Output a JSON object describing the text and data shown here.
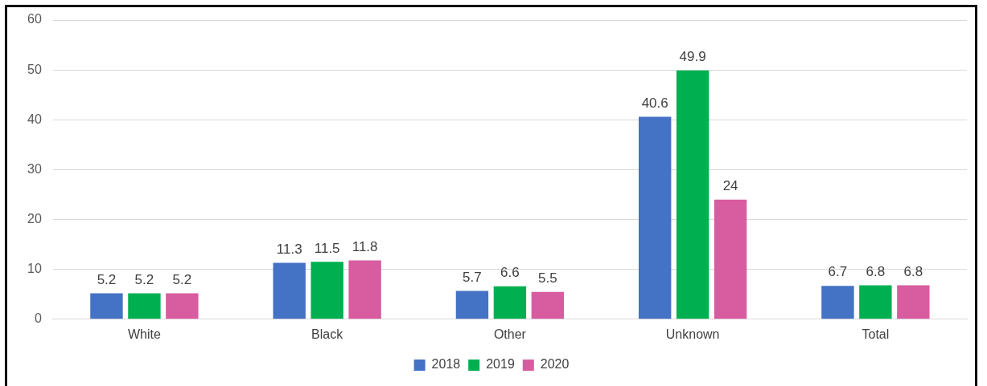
{
  "chart_data": {
    "type": "bar",
    "categories": [
      "White",
      "Black",
      "Other",
      "Unknown",
      "Total"
    ],
    "series": [
      {
        "name": "2018",
        "color": "#4472c4",
        "values": [
          5.2,
          11.3,
          5.7,
          40.6,
          6.7
        ]
      },
      {
        "name": "2019",
        "color": "#00b050",
        "values": [
          5.2,
          11.5,
          6.6,
          49.9,
          6.8
        ]
      },
      {
        "name": "2020",
        "color": "#d85ca0",
        "values": [
          5.2,
          11.8,
          5.5,
          24,
          6.8
        ]
      }
    ],
    "ylim": [
      0,
      60
    ],
    "yticks": [
      0,
      10,
      20,
      30,
      40,
      50,
      60
    ],
    "grid": "y",
    "legend": "bottom",
    "data_labels": true
  }
}
